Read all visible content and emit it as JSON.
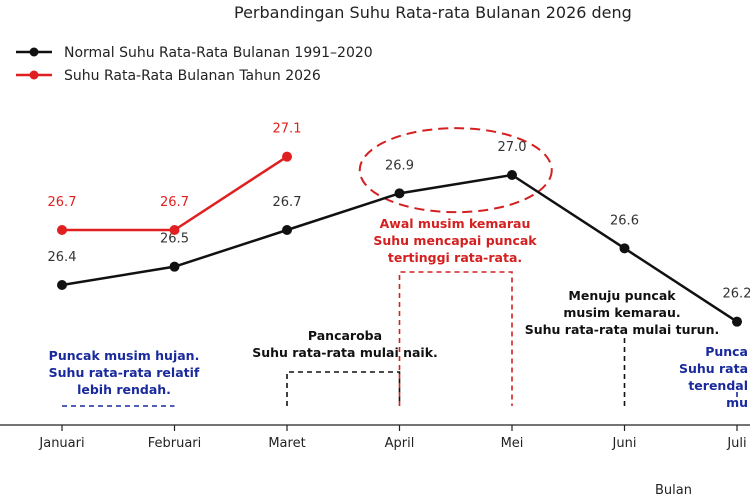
{
  "chart_data": {
    "type": "line",
    "title": "Perbandingan Suhu Rata-rata Bulanan 2026 deng",
    "xlabel": "Bulan",
    "ylabel": "",
    "categories": [
      "Januari",
      "Februari",
      "Maret",
      "April",
      "Mei",
      "Juni",
      "Juli"
    ],
    "ylim": [
      26.1,
      27.3
    ],
    "grid": false,
    "legend_position": "top-left",
    "series": [
      {
        "name": "Normal Suhu Rata-Rata Bulanan 1991–2020",
        "color": "#111111",
        "values": [
          26.4,
          26.5,
          26.7,
          26.9,
          27.0,
          26.6,
          26.2
        ],
        "labels": [
          "26.4",
          "26.5",
          "26.7",
          "26.9",
          "27.0",
          "26.6",
          "26.2"
        ]
      },
      {
        "name": "Suhu Rata-Rata Bulanan Tahun 2026",
        "color": "#e02020",
        "values": [
          26.7,
          26.7,
          27.1,
          null,
          null,
          null,
          null
        ],
        "labels": [
          "26.7",
          "26.7",
          "27.1"
        ]
      }
    ],
    "annotations": [
      {
        "id": "hujan",
        "color": "#1a2a9c",
        "lines": [
          "Puncak musim hujan.",
          "Suhu rata-rata relatif",
          "lebih rendah."
        ],
        "from": 0,
        "to": 1
      },
      {
        "id": "pancaroba",
        "color": "#111111",
        "lines": [
          "Pancaroba",
          "Suhu rata-rata mulai naik."
        ],
        "from": 2,
        "to": 3
      },
      {
        "id": "kemarau",
        "color": "#d42020",
        "lines": [
          "Awal musim kemarau",
          "Suhu mencapai puncak",
          "tertinggi rata-rata."
        ],
        "from": 3,
        "to": 4
      },
      {
        "id": "menuju",
        "color": "#111111",
        "lines": [
          "Menuju puncak",
          "musim kemarau.",
          "Suhu rata-rata mulai turun."
        ],
        "from": 5,
        "to": 5
      },
      {
        "id": "juli",
        "color": "#1a2a9c",
        "lines": [
          "Punca",
          "Suhu rata",
          "terendal",
          "mu"
        ],
        "from": 6,
        "to": 6
      }
    ],
    "highlight": {
      "type": "dashed-ellipse",
      "color": "#d42020",
      "around": [
        3,
        4
      ]
    }
  }
}
